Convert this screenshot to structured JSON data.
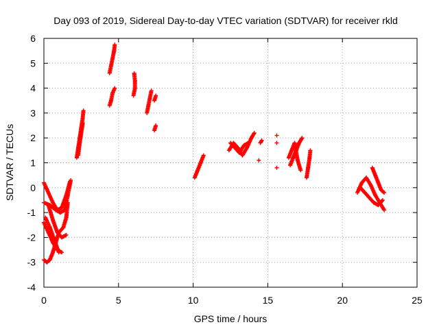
{
  "chart_data": {
    "type": "scatter",
    "title": "Day 093 of 2019, Sidereal Day-to-day VTEC variation (SDTVAR) for receiver rkld",
    "xlabel": "GPS time / hours",
    "ylabel": "SDTVAR / TECUs",
    "xlim": [
      0,
      25
    ],
    "ylim": [
      -4,
      6
    ],
    "xticks": [
      0,
      5,
      10,
      15,
      20,
      25
    ],
    "yticks": [
      -4,
      -3,
      -2,
      -1,
      0,
      1,
      2,
      3,
      4,
      5,
      6
    ],
    "grid": true,
    "marker": "+",
    "color": "#ff0000",
    "segments": [
      [
        [
          0.0,
          0.2
        ],
        [
          0.3,
          -0.2
        ],
        [
          0.6,
          -0.6
        ],
        [
          0.9,
          -0.9
        ],
        [
          1.2,
          -0.8
        ],
        [
          1.5,
          -0.3
        ],
        [
          1.75,
          0.25
        ]
      ],
      [
        [
          0.0,
          -0.6
        ],
        [
          0.4,
          -0.7
        ],
        [
          0.8,
          -0.9
        ],
        [
          1.1,
          -1.0
        ],
        [
          1.4,
          -0.9
        ],
        [
          1.6,
          -0.3
        ],
        [
          1.8,
          0.3
        ]
      ],
      [
        [
          0.0,
          -1.4
        ],
        [
          0.3,
          -1.8
        ],
        [
          0.6,
          -2.2
        ],
        [
          0.9,
          -2.5
        ],
        [
          1.2,
          -2.6
        ]
      ],
      [
        [
          0.0,
          -2.9
        ],
        [
          0.2,
          -3.0
        ],
        [
          0.4,
          -2.9
        ],
        [
          0.6,
          -2.6
        ],
        [
          0.8,
          -2.2
        ],
        [
          1.0,
          -1.8
        ],
        [
          1.3,
          -1.6
        ],
        [
          1.5,
          -1.2
        ],
        [
          1.6,
          -0.6
        ]
      ],
      [
        [
          0.3,
          -0.7
        ],
        [
          0.6,
          -1.3
        ],
        [
          0.9,
          -1.8
        ],
        [
          1.2,
          -2.0
        ],
        [
          1.5,
          -1.9
        ]
      ],
      [
        [
          0.1,
          -1.2
        ],
        [
          0.4,
          -1.6
        ],
        [
          0.7,
          -2.1
        ],
        [
          1.0,
          -2.6
        ]
      ],
      [
        [
          2.2,
          1.2
        ],
        [
          2.3,
          1.6
        ],
        [
          2.4,
          2.0
        ],
        [
          2.5,
          2.4
        ],
        [
          2.6,
          2.8
        ],
        [
          2.65,
          3.1
        ]
      ],
      [
        [
          2.3,
          1.3
        ],
        [
          2.4,
          1.8
        ],
        [
          2.5,
          2.2
        ],
        [
          2.6,
          2.6
        ]
      ],
      [
        [
          4.4,
          4.6
        ],
        [
          4.5,
          4.9
        ],
        [
          4.6,
          5.2
        ],
        [
          4.7,
          5.5
        ],
        [
          4.75,
          5.75
        ]
      ],
      [
        [
          4.4,
          3.3
        ],
        [
          4.5,
          3.5
        ],
        [
          4.6,
          3.8
        ],
        [
          4.75,
          4.0
        ]
      ],
      [
        [
          6.0,
          3.7
        ],
        [
          6.1,
          4.0
        ],
        [
          6.1,
          4.3
        ],
        [
          6.05,
          4.6
        ]
      ],
      [
        [
          6.9,
          3.0
        ],
        [
          7.0,
          3.3
        ],
        [
          7.1,
          3.6
        ],
        [
          7.2,
          3.9
        ]
      ],
      [
        [
          7.4,
          3.5
        ],
        [
          7.5,
          3.7
        ]
      ],
      [
        [
          7.4,
          2.3
        ],
        [
          7.5,
          2.5
        ]
      ],
      [
        [
          10.1,
          0.4
        ],
        [
          10.3,
          0.7
        ],
        [
          10.5,
          1.0
        ],
        [
          10.7,
          1.3
        ]
      ],
      [
        [
          12.4,
          1.5
        ],
        [
          12.7,
          1.8
        ],
        [
          13.0,
          1.6
        ],
        [
          13.3,
          1.3
        ],
        [
          13.6,
          1.6
        ],
        [
          13.9,
          2.0
        ],
        [
          14.1,
          2.2
        ]
      ],
      [
        [
          12.5,
          1.8
        ],
        [
          12.8,
          1.6
        ],
        [
          13.1,
          1.4
        ],
        [
          13.4,
          1.7
        ],
        [
          13.7,
          1.8
        ]
      ],
      [
        [
          14.4,
          1.1
        ]
      ],
      [
        [
          14.5,
          1.8
        ],
        [
          14.6,
          1.9
        ]
      ],
      [
        [
          15.6,
          0.8
        ]
      ],
      [
        [
          15.6,
          2.1
        ]
      ],
      [
        [
          15.6,
          1.8
        ]
      ],
      [
        [
          16.5,
          0.9
        ],
        [
          16.7,
          1.2
        ],
        [
          16.9,
          1.5
        ],
        [
          17.1,
          1.8
        ],
        [
          17.3,
          2.0
        ]
      ],
      [
        [
          16.4,
          1.2
        ],
        [
          16.6,
          1.5
        ],
        [
          16.8,
          1.8
        ],
        [
          17.0,
          1.1
        ],
        [
          17.2,
          0.7
        ]
      ],
      [
        [
          17.6,
          0.4
        ],
        [
          17.7,
          0.8
        ],
        [
          17.8,
          1.2
        ],
        [
          17.85,
          1.5
        ]
      ],
      [
        [
          21.0,
          -0.2
        ],
        [
          21.3,
          0.2
        ],
        [
          21.6,
          0.4
        ],
        [
          21.9,
          0.1
        ],
        [
          22.2,
          -0.3
        ],
        [
          22.5,
          -0.6
        ],
        [
          22.8,
          -0.9
        ]
      ],
      [
        [
          21.2,
          0.0
        ],
        [
          21.5,
          -0.2
        ],
        [
          21.8,
          -0.4
        ],
        [
          22.1,
          -0.6
        ],
        [
          22.4,
          -0.7
        ],
        [
          22.7,
          -0.5
        ]
      ],
      [
        [
          22.0,
          0.8
        ],
        [
          22.2,
          0.5
        ],
        [
          22.4,
          0.2
        ],
        [
          22.6,
          -0.1
        ],
        [
          22.8,
          -0.2
        ]
      ]
    ]
  }
}
